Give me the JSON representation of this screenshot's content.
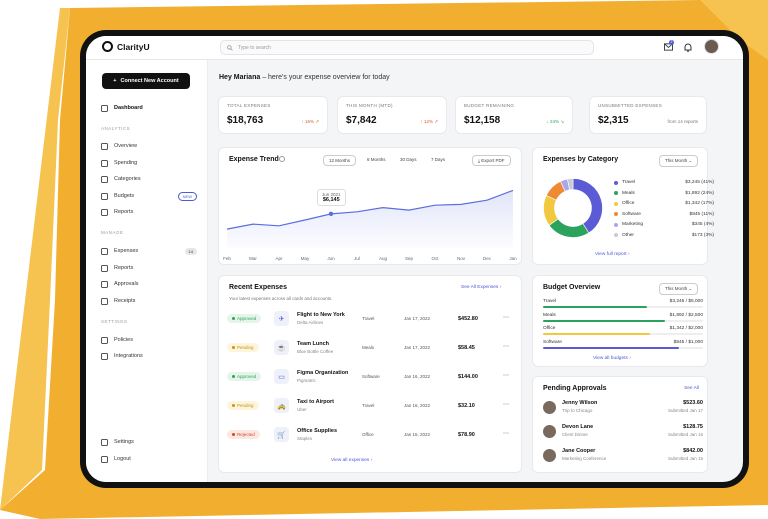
{
  "app": {
    "name": "ClarityU"
  },
  "topbar": {
    "search_placeholder": "Type to search",
    "notification_count": "2"
  },
  "sidebar": {
    "cta_label": "Connect New Account",
    "dashboard": "Dashboard",
    "sections": {
      "analytics": "ANALYTICS",
      "manage": "MANAGE",
      "settings": "SETTINGS"
    },
    "analytics_items": [
      "Overview",
      "Spending",
      "Categories",
      "Budgets",
      "Reports"
    ],
    "budgets_badge": "NEW",
    "manage_items": [
      "Expenses",
      "Reports",
      "Approvals",
      "Receipts"
    ],
    "expenses_badge": "14",
    "settings_items": [
      "Policies",
      "Integrations"
    ],
    "bottom_items": [
      "Settings",
      "Logout"
    ]
  },
  "greeting": {
    "name": "Hey Mariana",
    "text": " – here's your expense overview for today"
  },
  "stats": [
    {
      "label": "TOTAL EXPENSES",
      "value": "$18,763",
      "delta": "↑ 16% ↗",
      "delta_color": "#e0572b"
    },
    {
      "label": "THIS MONTH (MTD)",
      "value": "$7,842",
      "delta": "↑ 12% ↗",
      "delta_color": "#e0572b"
    },
    {
      "label": "BUDGET REMAINING",
      "value": "$12,158",
      "delta": "↓ 24% ↘",
      "delta_color": "#2ba35c"
    },
    {
      "label": "UNSUBMITTED EXPENSES",
      "value": "$2,315",
      "delta": "from 14 reports",
      "delta_color": "#777777"
    }
  ],
  "trend": {
    "title": "Expense Trend",
    "ranges": [
      "12 Months",
      "6 Months",
      "30 Days",
      "7 Days"
    ],
    "export_label": "Export PDF",
    "tooltip_month": "Jun 2021",
    "tooltip_value": "$6,145"
  },
  "chart_data": {
    "type": "line",
    "title": "Expense Trend",
    "categories": [
      "Feb",
      "Mar",
      "Apr",
      "May",
      "Jun",
      "Jul",
      "Aug",
      "Sep",
      "Oct",
      "Nov",
      "Dec",
      "Jan"
    ],
    "series": [
      {
        "values": [
          4300,
          4900,
          4700,
          5400,
          6145,
          6400,
          6900,
          6600,
          7200,
          7300,
          7800,
          9000
        ]
      }
    ],
    "ylim": [
      2000,
      10500
    ],
    "grid": false,
    "color": "#5b6ee1"
  },
  "category": {
    "title": "Expenses by Category",
    "period": "This Month",
    "items": [
      {
        "name": "Travel",
        "value": "$3,245 (41%)",
        "pct": 41,
        "color": "#5b5bd6"
      },
      {
        "name": "Meals",
        "value": "$1,892 (24%)",
        "pct": 24,
        "color": "#2ba35c"
      },
      {
        "name": "Office",
        "value": "$1,342 (17%)",
        "pct": 17,
        "color": "#f2c93e"
      },
      {
        "name": "Software",
        "value": "$845 (11%)",
        "pct": 11,
        "color": "#f08a32"
      },
      {
        "name": "Marketing",
        "value": "$345 (4%)",
        "pct": 4,
        "color": "#a9a6f0"
      },
      {
        "name": "Other",
        "value": "$173 (3%)",
        "pct": 3,
        "color": "#c9cbd3"
      }
    ],
    "link": "View full report"
  },
  "recent": {
    "title": "Recent Expenses",
    "subtitle": "Your latest expenses across all cards and accounts.",
    "see_all": "See All Expenses",
    "view_all": "View all expenses",
    "rows": [
      {
        "status": "Approved",
        "status_bg": "#e5f5ea",
        "status_color": "#2ba35c",
        "icon": "✈",
        "title": "Flight to New York",
        "sub": "Delta Airlines",
        "cat": "Travel",
        "date": "Jan 17, 2022",
        "amount": "$452.80"
      },
      {
        "status": "Pending",
        "status_bg": "#fdf4dc",
        "status_color": "#c9921a",
        "icon": "☕",
        "title": "Team Lunch",
        "sub": "Blue Bottle Coffee",
        "cat": "Meals",
        "date": "Jan 17, 2022",
        "amount": "$58.45"
      },
      {
        "status": "Approved",
        "status_bg": "#e5f5ea",
        "status_color": "#2ba35c",
        "icon": "▭",
        "title": "Figma Organization",
        "sub": "Pigmatric",
        "cat": "Software",
        "date": "Jan 16, 2022",
        "amount": "$144.00"
      },
      {
        "status": "Pending",
        "status_bg": "#fdf4dc",
        "status_color": "#c9921a",
        "icon": "🚕",
        "title": "Taxi to Airport",
        "sub": "Uber",
        "cat": "Travel",
        "date": "Jan 16, 2022",
        "amount": "$32.10"
      },
      {
        "status": "Rejected",
        "status_bg": "#fde7e3",
        "status_color": "#d6452b",
        "icon": "🛒",
        "title": "Office Supplies",
        "sub": "Staples",
        "cat": "Office",
        "date": "Jan 15, 2022",
        "amount": "$78.90"
      }
    ]
  },
  "budget": {
    "title": "Budget Overview",
    "period": "This Month",
    "items": [
      {
        "name": "Travel",
        "value": "$3,245 / $5,000",
        "fill": 0.65,
        "color": "#2ba35c"
      },
      {
        "name": "Meals",
        "value": "$1,892 / $2,500",
        "fill": 0.76,
        "color": "#2ba35c"
      },
      {
        "name": "Office",
        "value": "$1,342 / $2,000",
        "fill": 0.67,
        "color": "#f2c93e"
      },
      {
        "name": "Software",
        "value": "$845 / $1,000",
        "fill": 0.85,
        "color": "#5b5bd6"
      }
    ],
    "link": "View all budgets"
  },
  "approvals": {
    "title": "Pending Approvals",
    "see_all": "See All",
    "items": [
      {
        "name": "Jenny Wilson",
        "desc": "Trip to Chicago",
        "amount": "$523.60",
        "sub": "Submitted Jan 17"
      },
      {
        "name": "Devon Lane",
        "desc": "Client Dinner",
        "amount": "$128.75",
        "sub": "Submitted Jan 16"
      },
      {
        "name": "Jane Cooper",
        "desc": "Marketing Conference",
        "amount": "$842.00",
        "sub": "Submitted Jan 15"
      }
    ]
  }
}
